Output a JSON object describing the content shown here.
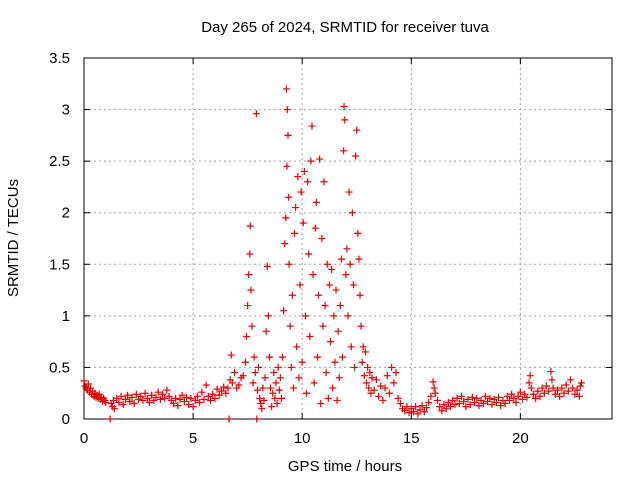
{
  "chart_data": {
    "type": "scatter",
    "title": "Day 265 of 2024, SRMTID for receiver tuva",
    "xlabel": "GPS time / hours",
    "ylabel": "SRMTID / TECUs",
    "xlim": [
      0,
      24.2
    ],
    "ylim": [
      0,
      3.5
    ],
    "x_ticks": [
      0,
      5,
      10,
      15,
      20
    ],
    "x_tick_labels": [
      "0",
      "5",
      "10",
      "15",
      "20"
    ],
    "y_ticks": [
      0,
      0.5,
      1,
      1.5,
      2,
      2.5,
      3,
      3.5
    ],
    "y_tick_labels": [
      "0",
      "0.5",
      "1",
      "1.5",
      "2",
      "2.5",
      "3",
      "3.5"
    ],
    "grid": true,
    "marker": "plus",
    "color": "#e00000",
    "series": [
      {
        "name": "SRMTID",
        "points": [
          [
            0.0,
            0.37
          ],
          [
            0.05,
            0.32
          ],
          [
            0.1,
            0.3
          ],
          [
            0.15,
            0.28
          ],
          [
            0.2,
            0.34
          ],
          [
            0.25,
            0.26
          ],
          [
            0.3,
            0.3
          ],
          [
            0.35,
            0.24
          ],
          [
            0.4,
            0.27
          ],
          [
            0.45,
            0.22
          ],
          [
            0.5,
            0.25
          ],
          [
            0.55,
            0.21
          ],
          [
            0.6,
            0.23
          ],
          [
            0.65,
            0.2
          ],
          [
            0.7,
            0.24
          ],
          [
            0.75,
            0.19
          ],
          [
            0.8,
            0.21
          ],
          [
            0.85,
            0.17
          ],
          [
            0.9,
            0.2
          ],
          [
            0.95,
            0.18
          ],
          [
            1.0,
            0.16
          ],
          [
            1.2,
            0.0
          ],
          [
            1.25,
            0.15
          ],
          [
            1.3,
            0.12
          ],
          [
            1.35,
            0.18
          ],
          [
            1.4,
            0.1
          ],
          [
            1.5,
            0.2
          ],
          [
            1.6,
            0.16
          ],
          [
            1.7,
            0.22
          ],
          [
            1.8,
            0.14
          ],
          [
            1.9,
            0.19
          ],
          [
            2.0,
            0.23
          ],
          [
            2.1,
            0.17
          ],
          [
            2.2,
            0.21
          ],
          [
            2.3,
            0.15
          ],
          [
            2.4,
            0.24
          ],
          [
            2.5,
            0.19
          ],
          [
            2.6,
            0.22
          ],
          [
            2.7,
            0.18
          ],
          [
            2.8,
            0.25
          ],
          [
            2.9,
            0.2
          ],
          [
            3.0,
            0.16
          ],
          [
            3.1,
            0.23
          ],
          [
            3.2,
            0.18
          ],
          [
            3.3,
            0.21
          ],
          [
            3.4,
            0.26
          ],
          [
            3.5,
            0.19
          ],
          [
            3.6,
            0.24
          ],
          [
            3.7,
            0.2
          ],
          [
            3.8,
            0.28
          ],
          [
            3.9,
            0.22
          ],
          [
            4.0,
            0.18
          ],
          [
            4.1,
            0.15
          ],
          [
            4.2,
            0.2
          ],
          [
            4.3,
            0.13
          ],
          [
            4.4,
            0.19
          ],
          [
            4.5,
            0.23
          ],
          [
            4.6,
            0.17
          ],
          [
            4.7,
            0.21
          ],
          [
            4.8,
            0.14
          ],
          [
            4.9,
            0.2
          ],
          [
            5.0,
            0.12
          ],
          [
            5.1,
            0.18
          ],
          [
            5.2,
            0.22
          ],
          [
            5.3,
            0.16
          ],
          [
            5.4,
            0.26
          ],
          [
            5.5,
            0.19
          ],
          [
            5.6,
            0.33
          ],
          [
            5.7,
            0.22
          ],
          [
            5.8,
            0.18
          ],
          [
            5.9,
            0.24
          ],
          [
            6.0,
            0.2
          ],
          [
            6.1,
            0.29
          ],
          [
            6.2,
            0.23
          ],
          [
            6.3,
            0.27
          ],
          [
            6.4,
            0.31
          ],
          [
            6.5,
            0.25
          ],
          [
            6.6,
            0.3
          ],
          [
            6.65,
            0.0
          ],
          [
            6.7,
            0.38
          ],
          [
            6.75,
            0.62
          ],
          [
            6.8,
            0.35
          ],
          [
            6.9,
            0.45
          ],
          [
            7.0,
            0.3
          ],
          [
            7.1,
            0.33
          ],
          [
            7.2,
            0.4
          ],
          [
            7.3,
            0.42
          ],
          [
            7.4,
            0.55
          ],
          [
            7.45,
            0.8
          ],
          [
            7.5,
            1.1
          ],
          [
            7.55,
            1.4
          ],
          [
            7.6,
            1.6
          ],
          [
            7.62,
            1.87
          ],
          [
            7.65,
            1.25
          ],
          [
            7.7,
            0.9
          ],
          [
            7.75,
            0.35
          ],
          [
            7.8,
            0.6
          ],
          [
            7.85,
            0.45
          ],
          [
            7.9,
            2.96
          ],
          [
            7.92,
            0.0
          ],
          [
            7.95,
            0.28
          ],
          [
            8.0,
            0.5
          ],
          [
            8.05,
            0.2
          ],
          [
            8.1,
            0.15
          ],
          [
            8.15,
            0.1
          ],
          [
            8.2,
            0.3
          ],
          [
            8.25,
            0.18
          ],
          [
            8.3,
            0.4
          ],
          [
            8.35,
            0.85
          ],
          [
            8.4,
            1.48
          ],
          [
            8.45,
            1.0
          ],
          [
            8.5,
            0.6
          ],
          [
            8.55,
            0.3
          ],
          [
            8.6,
            0.12
          ],
          [
            8.65,
            0.25
          ],
          [
            8.7,
            0.45
          ],
          [
            8.75,
            0.2
          ],
          [
            8.8,
            0.35
          ],
          [
            8.85,
            0.15
          ],
          [
            8.9,
            0.5
          ],
          [
            8.95,
            0.28
          ],
          [
            9.0,
            0.4
          ],
          [
            9.05,
            0.2
          ],
          [
            9.1,
            0.6
          ],
          [
            9.15,
            1.05
          ],
          [
            9.2,
            1.7
          ],
          [
            9.25,
            1.95
          ],
          [
            9.28,
            3.2
          ],
          [
            9.3,
            2.45
          ],
          [
            9.32,
            3.0
          ],
          [
            9.35,
            2.75
          ],
          [
            9.38,
            2.15
          ],
          [
            9.4,
            1.5
          ],
          [
            9.45,
            0.9
          ],
          [
            9.5,
            0.5
          ],
          [
            9.55,
            1.2
          ],
          [
            9.6,
            0.3
          ],
          [
            9.65,
            1.8
          ],
          [
            9.7,
            2.05
          ],
          [
            9.75,
            0.7
          ],
          [
            9.8,
            2.35
          ],
          [
            9.85,
            0.4
          ],
          [
            9.9,
            1.3
          ],
          [
            9.95,
            2.2
          ],
          [
            10.0,
            0.55
          ],
          [
            10.05,
            1.9
          ],
          [
            10.1,
            2.4
          ],
          [
            10.15,
            1.0
          ],
          [
            10.2,
            0.25
          ],
          [
            10.25,
            2.3
          ],
          [
            10.3,
            1.6
          ],
          [
            10.35,
            0.8
          ],
          [
            10.4,
            2.5
          ],
          [
            10.45,
            2.84
          ],
          [
            10.5,
            1.4
          ],
          [
            10.55,
            0.35
          ],
          [
            10.6,
            1.85
          ],
          [
            10.65,
            2.1
          ],
          [
            10.7,
            0.6
          ],
          [
            10.75,
            1.2
          ],
          [
            10.8,
            2.52
          ],
          [
            10.85,
            0.15
          ],
          [
            10.9,
            1.75
          ],
          [
            10.95,
            0.9
          ],
          [
            11.0,
            2.3
          ],
          [
            11.05,
            1.1
          ],
          [
            11.1,
            0.45
          ],
          [
            11.15,
            1.5
          ],
          [
            11.2,
            0.2
          ],
          [
            11.25,
            1.3
          ],
          [
            11.3,
            0.75
          ],
          [
            11.35,
            1.45
          ],
          [
            11.4,
            0.3
          ],
          [
            11.45,
            1.0
          ],
          [
            11.5,
            0.55
          ],
          [
            11.55,
            1.25
          ],
          [
            11.6,
            0.18
          ],
          [
            11.65,
            0.85
          ],
          [
            11.7,
            0.4
          ],
          [
            11.75,
            1.1
          ],
          [
            11.8,
            1.55
          ],
          [
            11.85,
            0.6
          ],
          [
            11.9,
            2.6
          ],
          [
            11.92,
            3.03
          ],
          [
            11.95,
            2.9
          ],
          [
            12.0,
            1.4
          ],
          [
            12.05,
            1.65
          ],
          [
            12.1,
            1.0
          ],
          [
            12.15,
            2.2
          ],
          [
            12.2,
            1.5
          ],
          [
            12.25,
            0.7
          ],
          [
            12.3,
            2.0
          ],
          [
            12.35,
            1.3
          ],
          [
            12.4,
            0.5
          ],
          [
            12.45,
            2.55
          ],
          [
            12.5,
            2.8
          ],
          [
            12.55,
            1.8
          ],
          [
            12.6,
            1.55
          ],
          [
            12.65,
            1.2
          ],
          [
            12.7,
            0.9
          ],
          [
            12.75,
            0.55
          ],
          [
            12.8,
            0.7
          ],
          [
            12.85,
            0.42
          ],
          [
            12.9,
            0.65
          ],
          [
            12.95,
            0.35
          ],
          [
            13.0,
            0.5
          ],
          [
            13.05,
            0.3
          ],
          [
            13.1,
            0.45
          ],
          [
            13.15,
            0.25
          ],
          [
            13.2,
            0.4
          ],
          [
            13.3,
            0.28
          ],
          [
            13.4,
            0.38
          ],
          [
            13.5,
            0.22
          ],
          [
            13.6,
            0.32
          ],
          [
            13.7,
            0.18
          ],
          [
            13.8,
            0.3
          ],
          [
            13.9,
            0.42
          ],
          [
            14.0,
            0.25
          ],
          [
            14.1,
            0.5
          ],
          [
            14.2,
            0.35
          ],
          [
            14.3,
            0.45
          ],
          [
            14.4,
            0.2
          ],
          [
            14.5,
            0.15
          ],
          [
            14.6,
            0.1
          ],
          [
            14.7,
            0.08
          ],
          [
            14.8,
            0.12
          ],
          [
            14.9,
            0.06
          ],
          [
            15.0,
            0.1
          ],
          [
            15.1,
            0.07
          ],
          [
            15.2,
            0.12
          ],
          [
            15.3,
            0.05
          ],
          [
            15.4,
            0.09
          ],
          [
            15.5,
            0.13
          ],
          [
            15.6,
            0.07
          ],
          [
            15.7,
            0.11
          ],
          [
            15.8,
            0.16
          ],
          [
            15.9,
            0.22
          ],
          [
            16.0,
            0.36
          ],
          [
            16.05,
            0.3
          ],
          [
            16.1,
            0.25
          ],
          [
            16.2,
            0.18
          ],
          [
            16.3,
            0.12
          ],
          [
            16.4,
            0.08
          ],
          [
            16.5,
            0.14
          ],
          [
            16.6,
            0.1
          ],
          [
            16.7,
            0.16
          ],
          [
            16.8,
            0.12
          ],
          [
            16.9,
            0.18
          ],
          [
            17.0,
            0.14
          ],
          [
            17.1,
            0.2
          ],
          [
            17.2,
            0.15
          ],
          [
            17.3,
            0.22
          ],
          [
            17.4,
            0.17
          ],
          [
            17.5,
            0.12
          ],
          [
            17.6,
            0.19
          ],
          [
            17.7,
            0.14
          ],
          [
            17.8,
            0.21
          ],
          [
            17.9,
            0.16
          ],
          [
            18.0,
            0.2
          ],
          [
            18.1,
            0.13
          ],
          [
            18.2,
            0.18
          ],
          [
            18.3,
            0.15
          ],
          [
            18.4,
            0.22
          ],
          [
            18.5,
            0.17
          ],
          [
            18.6,
            0.2
          ],
          [
            18.7,
            0.14
          ],
          [
            18.8,
            0.19
          ],
          [
            18.9,
            0.16
          ],
          [
            19.0,
            0.21
          ],
          [
            19.1,
            0.13
          ],
          [
            19.2,
            0.18
          ],
          [
            19.3,
            0.15
          ],
          [
            19.4,
            0.22
          ],
          [
            19.5,
            0.18
          ],
          [
            19.6,
            0.24
          ],
          [
            19.7,
            0.2
          ],
          [
            19.8,
            0.16
          ],
          [
            19.9,
            0.22
          ],
          [
            20.0,
            0.26
          ],
          [
            20.1,
            0.19
          ],
          [
            20.2,
            0.24
          ],
          [
            20.3,
            0.21
          ],
          [
            20.4,
            0.35
          ],
          [
            20.45,
            0.42
          ],
          [
            20.5,
            0.3
          ],
          [
            20.6,
            0.24
          ],
          [
            20.7,
            0.2
          ],
          [
            20.8,
            0.27
          ],
          [
            20.9,
            0.22
          ],
          [
            21.0,
            0.3
          ],
          [
            21.1,
            0.25
          ],
          [
            21.2,
            0.32
          ],
          [
            21.3,
            0.27
          ],
          [
            21.4,
            0.46
          ],
          [
            21.45,
            0.38
          ],
          [
            21.5,
            0.3
          ],
          [
            21.6,
            0.24
          ],
          [
            21.7,
            0.28
          ],
          [
            21.8,
            0.22
          ],
          [
            21.9,
            0.3
          ],
          [
            22.0,
            0.25
          ],
          [
            22.1,
            0.33
          ],
          [
            22.2,
            0.27
          ],
          [
            22.3,
            0.38
          ],
          [
            22.4,
            0.3
          ],
          [
            22.5,
            0.24
          ],
          [
            22.6,
            0.28
          ],
          [
            22.7,
            0.22
          ],
          [
            22.75,
            0.32
          ],
          [
            22.8,
            0.35
          ]
        ]
      }
    ]
  }
}
